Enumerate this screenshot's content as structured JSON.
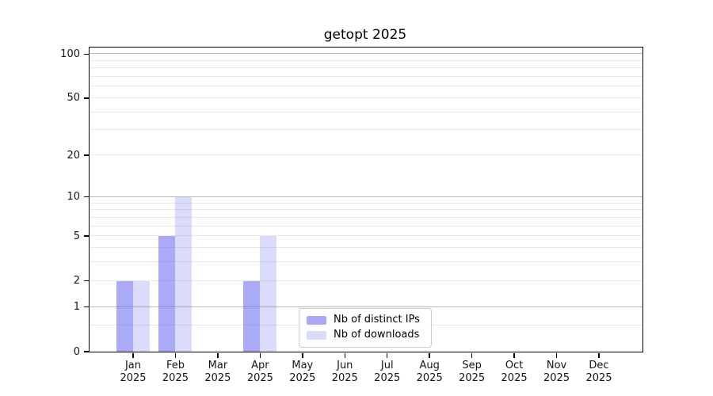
{
  "chart_data": {
    "type": "bar",
    "title": "getopt 2025",
    "categories": [
      "Jan 2025",
      "Feb 2025",
      "Mar 2025",
      "Apr 2025",
      "May 2025",
      "Jun 2025",
      "Jul 2025",
      "Aug 2025",
      "Sep 2025",
      "Oct 2025",
      "Nov 2025",
      "Dec 2025"
    ],
    "month_labels": [
      "Jan",
      "Feb",
      "Mar",
      "Apr",
      "May",
      "Jun",
      "Jul",
      "Aug",
      "Sep",
      "Oct",
      "Nov",
      "Dec"
    ],
    "year_label": "2025",
    "series": [
      {
        "name": "Nb of distinct IPs",
        "values": [
          2,
          5,
          0,
          2,
          0,
          0,
          0,
          0,
          0,
          0,
          0,
          0
        ],
        "color_rgba": "rgba(100,100,240,0.55)",
        "color_hex": "#a9a9f6"
      },
      {
        "name": "Nb of downloads",
        "values": [
          2,
          10,
          0,
          5,
          0,
          0,
          0,
          0,
          0,
          0,
          0,
          0
        ],
        "color_rgba": "rgba(100,100,240,0.23)",
        "color_hex": "#dbdbfb"
      }
    ],
    "yaxis": {
      "scale": "log1p",
      "tick_values": [
        0,
        1,
        2,
        5,
        10,
        20,
        50,
        100
      ],
      "top_value": 110.7,
      "major_gridlines": [
        1,
        10,
        100
      ],
      "minor_gridlines": [
        0.5,
        2,
        3,
        4,
        5,
        6,
        7,
        8,
        9,
        20,
        30,
        40,
        50,
        60,
        70,
        80,
        90
      ]
    },
    "xaxis": {
      "tick_count": 12
    },
    "legend": {
      "position": "lower-center-inside"
    },
    "grid": true,
    "colors": {
      "grid_major": "#b8b8b8",
      "grid_minor": "#e9e9e9",
      "spine": "#000000",
      "text": "#141414",
      "background": "#ffffff"
    }
  }
}
